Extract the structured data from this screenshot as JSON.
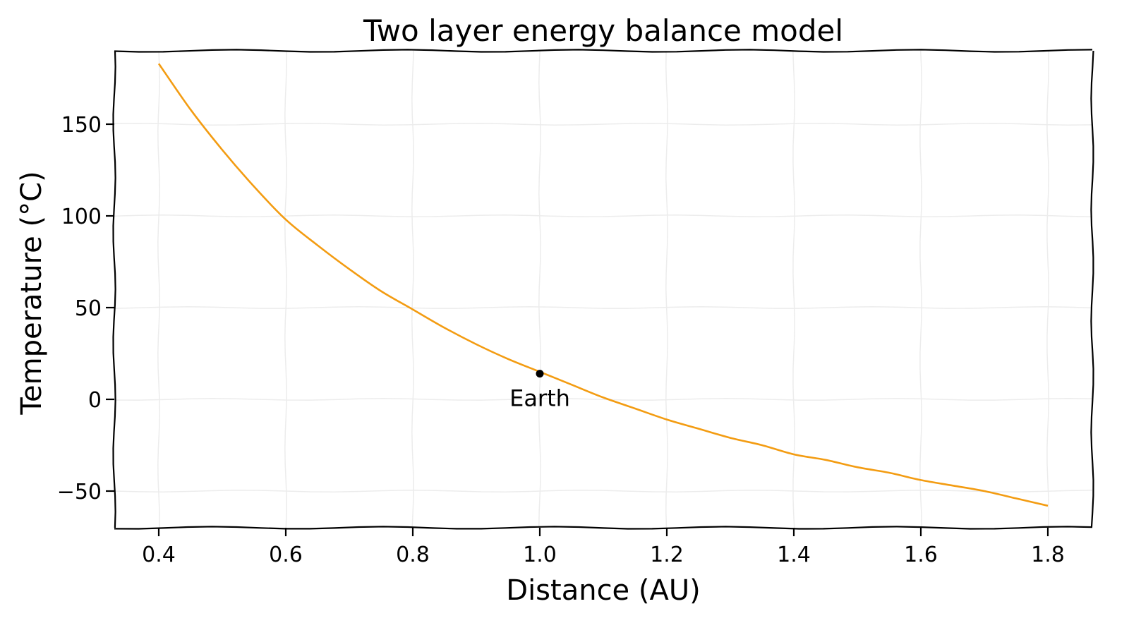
{
  "chart_data": {
    "type": "line",
    "title": "Two layer energy balance model",
    "xlabel": "Distance (AU)",
    "ylabel": "Temperature (°C)",
    "xlim": [
      0.33,
      1.87
    ],
    "ylim": [
      -70,
      190
    ],
    "xticks": [
      0.4,
      0.6,
      0.8,
      1.0,
      1.2,
      1.4,
      1.6,
      1.8
    ],
    "xtick_labels": [
      "0.4",
      "0.6",
      "0.8",
      "1.0",
      "1.2",
      "1.4",
      "1.6",
      "1.8"
    ],
    "yticks": [
      -50,
      0,
      50,
      100,
      150
    ],
    "ytick_labels": [
      "−50",
      "0",
      "50",
      "100",
      "150"
    ],
    "grid": true,
    "line_color": "#f39c12",
    "series": [
      {
        "x": [
          0.4,
          0.45,
          0.5,
          0.55,
          0.6,
          0.65,
          0.7,
          0.75,
          0.8,
          0.85,
          0.9,
          0.95,
          1.0,
          1.05,
          1.1,
          1.15,
          1.2,
          1.25,
          1.3,
          1.35,
          1.4,
          1.45,
          1.5,
          1.55,
          1.6,
          1.65,
          1.7,
          1.75,
          1.8
        ],
        "y": [
          183,
          158,
          136,
          116,
          98,
          84,
          71,
          59,
          49,
          39,
          30,
          22,
          15,
          8,
          1,
          -5,
          -11,
          -16,
          -21,
          -25,
          -30,
          -33,
          -37,
          -40,
          -44,
          -47,
          -50,
          -54,
          -58
        ]
      }
    ],
    "annotations": [
      {
        "label": "Earth",
        "x": 1.0,
        "y": 14
      }
    ]
  }
}
